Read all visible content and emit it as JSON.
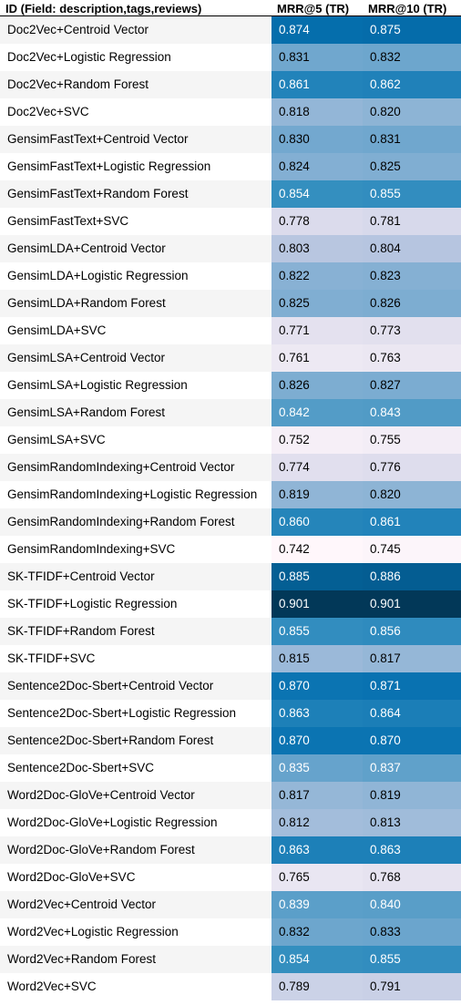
{
  "chart_data": {
    "type": "table",
    "columns": [
      "ID (Field: description,tags,reviews)",
      "MRR@5 (TR)",
      "MRR@10 (TR)"
    ],
    "color_scale": {
      "low": "#fff7fb",
      "mid": "#74a9cf",
      "high": "#023858",
      "min": 0.742,
      "max": 0.901
    },
    "rows": [
      {
        "id": "Doc2Vec+Centroid Vector",
        "mrr5": "0.874",
        "mrr10": "0.875"
      },
      {
        "id": "Doc2Vec+Logistic Regression",
        "mrr5": "0.831",
        "mrr10": "0.832"
      },
      {
        "id": "Doc2Vec+Random Forest",
        "mrr5": "0.861",
        "mrr10": "0.862"
      },
      {
        "id": "Doc2Vec+SVC",
        "mrr5": "0.818",
        "mrr10": "0.820"
      },
      {
        "id": "GensimFastText+Centroid Vector",
        "mrr5": "0.830",
        "mrr10": "0.831"
      },
      {
        "id": "GensimFastText+Logistic Regression",
        "mrr5": "0.824",
        "mrr10": "0.825"
      },
      {
        "id": "GensimFastText+Random Forest",
        "mrr5": "0.854",
        "mrr10": "0.855"
      },
      {
        "id": "GensimFastText+SVC",
        "mrr5": "0.778",
        "mrr10": "0.781"
      },
      {
        "id": "GensimLDA+Centroid Vector",
        "mrr5": "0.803",
        "mrr10": "0.804"
      },
      {
        "id": "GensimLDA+Logistic Regression",
        "mrr5": "0.822",
        "mrr10": "0.823"
      },
      {
        "id": "GensimLDA+Random Forest",
        "mrr5": "0.825",
        "mrr10": "0.826"
      },
      {
        "id": "GensimLDA+SVC",
        "mrr5": "0.771",
        "mrr10": "0.773"
      },
      {
        "id": "GensimLSA+Centroid Vector",
        "mrr5": "0.761",
        "mrr10": "0.763"
      },
      {
        "id": "GensimLSA+Logistic Regression",
        "mrr5": "0.826",
        "mrr10": "0.827"
      },
      {
        "id": "GensimLSA+Random Forest",
        "mrr5": "0.842",
        "mrr10": "0.843"
      },
      {
        "id": "GensimLSA+SVC",
        "mrr5": "0.752",
        "mrr10": "0.755"
      },
      {
        "id": "GensimRandomIndexing+Centroid Vector",
        "mrr5": "0.774",
        "mrr10": "0.776"
      },
      {
        "id": "GensimRandomIndexing+Logistic Regression",
        "mrr5": "0.819",
        "mrr10": "0.820"
      },
      {
        "id": "GensimRandomIndexing+Random Forest",
        "mrr5": "0.860",
        "mrr10": "0.861"
      },
      {
        "id": "GensimRandomIndexing+SVC",
        "mrr5": "0.742",
        "mrr10": "0.745"
      },
      {
        "id": "SK-TFIDF+Centroid Vector",
        "mrr5": "0.885",
        "mrr10": "0.886"
      },
      {
        "id": "SK-TFIDF+Logistic Regression",
        "mrr5": "0.901",
        "mrr10": "0.901"
      },
      {
        "id": "SK-TFIDF+Random Forest",
        "mrr5": "0.855",
        "mrr10": "0.856"
      },
      {
        "id": "SK-TFIDF+SVC",
        "mrr5": "0.815",
        "mrr10": "0.817"
      },
      {
        "id": "Sentence2Doc-Sbert+Centroid Vector",
        "mrr5": "0.870",
        "mrr10": "0.871"
      },
      {
        "id": "Sentence2Doc-Sbert+Logistic Regression",
        "mrr5": "0.863",
        "mrr10": "0.864"
      },
      {
        "id": "Sentence2Doc-Sbert+Random Forest",
        "mrr5": "0.870",
        "mrr10": "0.870"
      },
      {
        "id": "Sentence2Doc-Sbert+SVC",
        "mrr5": "0.835",
        "mrr10": "0.837"
      },
      {
        "id": "Word2Doc-GloVe+Centroid Vector",
        "mrr5": "0.817",
        "mrr10": "0.819"
      },
      {
        "id": "Word2Doc-GloVe+Logistic Regression",
        "mrr5": "0.812",
        "mrr10": "0.813"
      },
      {
        "id": "Word2Doc-GloVe+Random Forest",
        "mrr5": "0.863",
        "mrr10": "0.863"
      },
      {
        "id": "Word2Doc-GloVe+SVC",
        "mrr5": "0.765",
        "mrr10": "0.768"
      },
      {
        "id": "Word2Vec+Centroid Vector",
        "mrr5": "0.839",
        "mrr10": "0.840"
      },
      {
        "id": "Word2Vec+Logistic Regression",
        "mrr5": "0.832",
        "mrr10": "0.833"
      },
      {
        "id": "Word2Vec+Random Forest",
        "mrr5": "0.854",
        "mrr10": "0.855"
      },
      {
        "id": "Word2Vec+SVC",
        "mrr5": "0.789",
        "mrr10": "0.791"
      }
    ]
  }
}
